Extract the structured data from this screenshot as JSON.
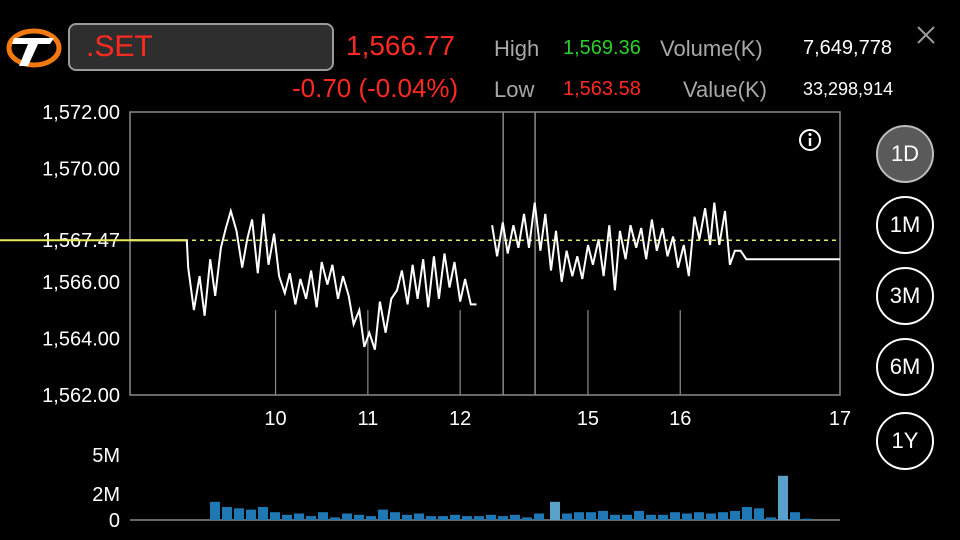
{
  "header": {
    "symbol": ".SET",
    "last_price": "1,566.77",
    "change": "-0.70 (-0.04%)",
    "high_label": "High",
    "high_value": "1,569.36",
    "low_label": "Low",
    "low_value": "1,563.58",
    "volume_label": "Volume(K)",
    "volume_value": "7,649,778",
    "value_label": "Value(K)",
    "value_value": "33,298,914",
    "colors": {
      "down": "#ff2a1f",
      "up": "#2bd12b",
      "reference": "#e8e85a",
      "volume": "#1f78b4"
    }
  },
  "icons": {
    "logo": "brand-logo-icon",
    "close": "close-icon",
    "info": "info-icon"
  },
  "range_buttons": [
    {
      "label": "1D",
      "active": true
    },
    {
      "label": "1M",
      "active": false
    },
    {
      "label": "3M",
      "active": false
    },
    {
      "label": "6M",
      "active": false
    },
    {
      "label": "1Y",
      "active": false
    }
  ],
  "chart_data": [
    {
      "type": "line",
      "y_ticks": [
        "1,572.00",
        "1,570.00",
        "1,567.47",
        "1,566.00",
        "1,564.00",
        "1,562.00"
      ],
      "ylim": [
        1562,
        1572
      ],
      "reference_line": 1567.47,
      "x_ticks": [
        {
          "label": "10",
          "t": 0.205
        },
        {
          "label": "11",
          "t": 0.335
        },
        {
          "label": "12",
          "t": 0.465
        },
        {
          "label": "15",
          "t": 0.645
        },
        {
          "label": "16",
          "t": 0.775
        },
        {
          "label": "17",
          "t": 1.0
        }
      ],
      "session_breaks": [
        0.465,
        0.51
      ],
      "series": [
        {
          "segments": [
            [
              [
                0,
                1567.47
              ],
              [
                0.08,
                1567.47
              ],
              [
                0.082,
                1566.5
              ],
              [
                0.09,
                1565
              ],
              [
                0.098,
                1566.2
              ],
              [
                0.105,
                1564.8
              ],
              [
                0.113,
                1566.8
              ],
              [
                0.12,
                1565.5
              ],
              [
                0.128,
                1567.2
              ],
              [
                0.135,
                1567.9
              ],
              [
                0.142,
                1568.5
              ],
              [
                0.15,
                1567.8
              ],
              [
                0.158,
                1566.5
              ],
              [
                0.165,
                1567.5
              ],
              [
                0.172,
                1568.2
              ],
              [
                0.18,
                1566.3
              ],
              [
                0.188,
                1568.4
              ],
              [
                0.195,
                1566.6
              ],
              [
                0.203,
                1567.7
              ],
              [
                0.21,
                1566.2
              ],
              [
                0.218,
                1565.6
              ],
              [
                0.225,
                1566.3
              ],
              [
                0.233,
                1565.2
              ],
              [
                0.24,
                1566.1
              ],
              [
                0.248,
                1565.4
              ],
              [
                0.255,
                1566.4
              ],
              [
                0.263,
                1565.1
              ],
              [
                0.27,
                1566.7
              ],
              [
                0.278,
                1565.9
              ],
              [
                0.285,
                1566.6
              ],
              [
                0.293,
                1565.4
              ],
              [
                0.3,
                1566.2
              ],
              [
                0.308,
                1565.5
              ],
              [
                0.315,
                1564.5
              ],
              [
                0.323,
                1565
              ],
              [
                0.33,
                1563.7
              ],
              [
                0.337,
                1564.2
              ],
              [
                0.345,
                1563.6
              ],
              [
                0.352,
                1565.3
              ],
              [
                0.36,
                1564.2
              ],
              [
                0.368,
                1565.4
              ],
              [
                0.376,
                1565.7
              ],
              [
                0.383,
                1566.4
              ],
              [
                0.391,
                1565.2
              ],
              [
                0.398,
                1566.6
              ],
              [
                0.405,
                1565.4
              ],
              [
                0.413,
                1566.8
              ],
              [
                0.42,
                1565.1
              ],
              [
                0.428,
                1566.9
              ],
              [
                0.435,
                1565.4
              ],
              [
                0.443,
                1567
              ],
              [
                0.45,
                1565.8
              ],
              [
                0.457,
                1566.7
              ],
              [
                0.465,
                1565.3
              ],
              [
                0.472,
                1566.1
              ],
              [
                0.48,
                1565.2
              ],
              [
                0.488,
                1565.2
              ]
            ],
            [
              [
                0.51,
                1568
              ],
              [
                0.517,
                1566.9
              ],
              [
                0.525,
                1568.1
              ],
              [
                0.532,
                1567
              ],
              [
                0.54,
                1568
              ],
              [
                0.547,
                1567.2
              ],
              [
                0.555,
                1568.4
              ],
              [
                0.562,
                1567.2
              ],
              [
                0.57,
                1568.8
              ],
              [
                0.578,
                1567.1
              ],
              [
                0.585,
                1568.4
              ],
              [
                0.593,
                1566.4
              ],
              [
                0.6,
                1567.8
              ],
              [
                0.608,
                1566
              ],
              [
                0.615,
                1567.1
              ],
              [
                0.623,
                1566.2
              ],
              [
                0.63,
                1566.9
              ],
              [
                0.637,
                1566.1
              ],
              [
                0.645,
                1567.3
              ],
              [
                0.652,
                1566.6
              ],
              [
                0.66,
                1567.5
              ],
              [
                0.667,
                1566.2
              ],
              [
                0.675,
                1568
              ],
              [
                0.683,
                1565.7
              ],
              [
                0.69,
                1567.8
              ],
              [
                0.698,
                1566.8
              ],
              [
                0.705,
                1568
              ],
              [
                0.713,
                1567.2
              ],
              [
                0.72,
                1567.9
              ],
              [
                0.727,
                1566.8
              ],
              [
                0.735,
                1568.2
              ],
              [
                0.742,
                1567.1
              ],
              [
                0.75,
                1567.9
              ],
              [
                0.757,
                1566.9
              ],
              [
                0.765,
                1567.6
              ],
              [
                0.772,
                1566.5
              ],
              [
                0.78,
                1567.3
              ],
              [
                0.787,
                1566.2
              ],
              [
                0.795,
                1568.3
              ],
              [
                0.802,
                1567.5
              ],
              [
                0.81,
                1568.6
              ],
              [
                0.817,
                1567.3
              ],
              [
                0.823,
                1568.8
              ],
              [
                0.83,
                1567.3
              ],
              [
                0.838,
                1568.5
              ],
              [
                0.845,
                1566.6
              ],
              [
                0.852,
                1567.1
              ],
              [
                0.86,
                1567.1
              ],
              [
                0.868,
                1566.8
              ],
              [
                0.92,
                1566.8
              ],
              [
                1.0,
                1566.8
              ]
            ]
          ]
        }
      ]
    },
    {
      "type": "bar",
      "y_ticks": [
        "5M",
        "2M",
        "0"
      ],
      "ylim": [
        0,
        5
      ],
      "values": [
        1.4,
        1.0,
        0.9,
        0.8,
        1.0,
        0.6,
        0.4,
        0.5,
        0.3,
        0.6,
        0.2,
        0.5,
        0.4,
        0.3,
        0.8,
        0.6,
        0.4,
        0.5,
        0.3,
        0.3,
        0.4,
        0.3,
        0.3,
        0.4,
        0.3,
        0.4,
        0.2,
        0.5,
        1.4,
        0.5,
        0.6,
        0.6,
        0.7,
        0.4,
        0.4,
        0.7,
        0.4,
        0.4,
        0.6,
        0.5,
        0.6,
        0.5,
        0.6,
        0.7,
        1.0,
        0.9,
        0.2,
        3.4,
        0.6,
        0.1
      ],
      "x_start": [
        0.045,
        0.045,
        0.045,
        0.045,
        0.045,
        0.045,
        0.045,
        0.045,
        0.045,
        0.045,
        0.045,
        0.045,
        0.045,
        0.045,
        0.045,
        0.045,
        0.045,
        0.045,
        0.045,
        0.045,
        0.045,
        0.045,
        0.045,
        0.045,
        0.045,
        0.045,
        0.045,
        0.045,
        0.51,
        0.51,
        0.51,
        0.51,
        0.51,
        0.51,
        0.51,
        0.51,
        0.51,
        0.51,
        0.51,
        0.51,
        0.51,
        0.51,
        0.51,
        0.51,
        0.51,
        0.51,
        0.51,
        0.51,
        0.51,
        0.51
      ]
    }
  ]
}
